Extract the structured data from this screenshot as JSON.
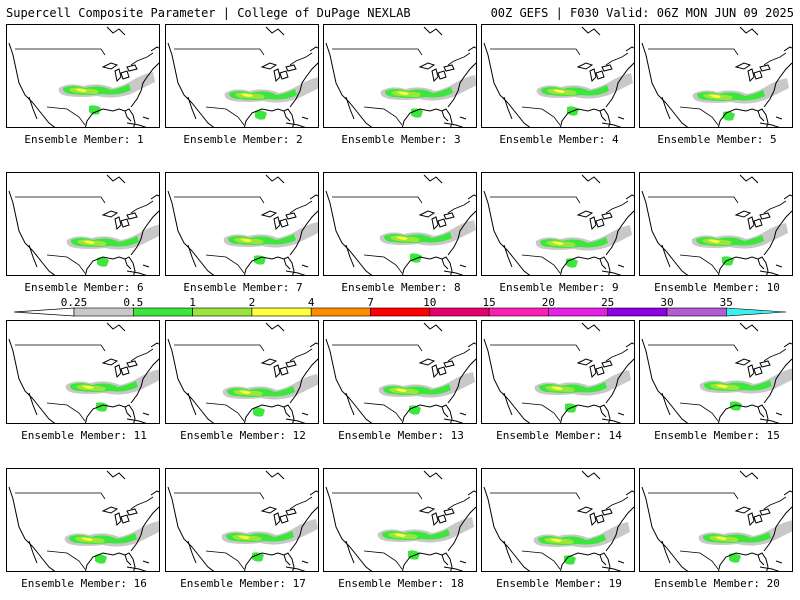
{
  "header": {
    "title_left": "Supercell Composite Parameter | College of DuPage NEXLAB",
    "title_right": "00Z GEFS | F030 Valid: 06Z MON JUN 09 2025"
  },
  "members": [
    {
      "label": "Ensemble Member: 1"
    },
    {
      "label": "Ensemble Member: 2"
    },
    {
      "label": "Ensemble Member: 3"
    },
    {
      "label": "Ensemble Member: 4"
    },
    {
      "label": "Ensemble Member: 5"
    },
    {
      "label": "Ensemble Member: 6"
    },
    {
      "label": "Ensemble Member: 7"
    },
    {
      "label": "Ensemble Member: 8"
    },
    {
      "label": "Ensemble Member: 9"
    },
    {
      "label": "Ensemble Member: 10"
    },
    {
      "label": "Ensemble Member: 11"
    },
    {
      "label": "Ensemble Member: 12"
    },
    {
      "label": "Ensemble Member: 13"
    },
    {
      "label": "Ensemble Member: 14"
    },
    {
      "label": "Ensemble Member: 15"
    },
    {
      "label": "Ensemble Member: 16"
    },
    {
      "label": "Ensemble Member: 17"
    },
    {
      "label": "Ensemble Member: 18"
    },
    {
      "label": "Ensemble Member: 19"
    },
    {
      "label": "Ensemble Member: 20"
    }
  ],
  "legend": {
    "bins": [
      {
        "label": "0.25",
        "color": "#c8c8c8"
      },
      {
        "label": "0.5",
        "color": "#3ce63c"
      },
      {
        "label": "1",
        "color": "#9be63c"
      },
      {
        "label": "2",
        "color": "#ffff3c"
      },
      {
        "label": "4",
        "color": "#ff8c00"
      },
      {
        "label": "7",
        "color": "#ff0000"
      },
      {
        "label": "10",
        "color": "#e6006e"
      },
      {
        "label": "15",
        "color": "#ff1eb4"
      },
      {
        "label": "20",
        "color": "#e61ee6"
      },
      {
        "label": "25",
        "color": "#8c00e6"
      },
      {
        "label": "30",
        "color": "#b45ad2"
      },
      {
        "label": "35",
        "color": "#3cf0f0"
      }
    ]
  }
}
